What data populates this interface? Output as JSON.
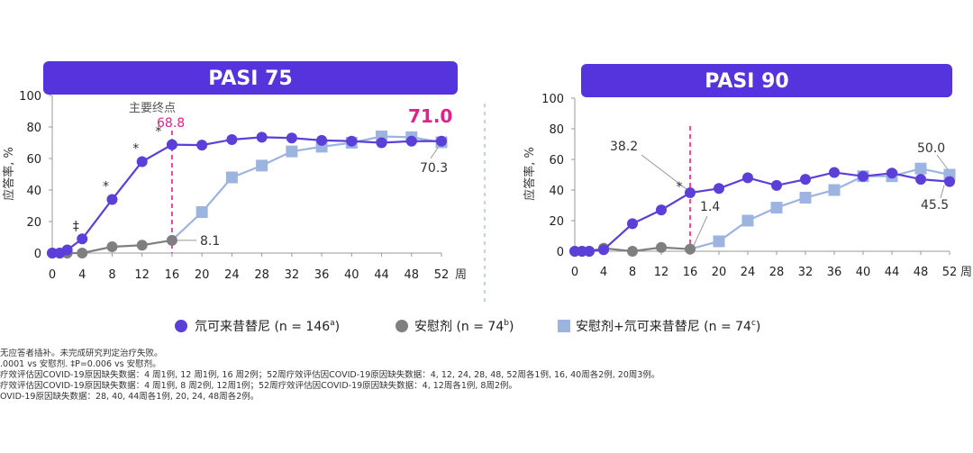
{
  "chart_data": [
    {
      "type": "line",
      "title": "PASI 75",
      "ylabel": "应答率, %",
      "xlabel": "周",
      "ylim": [
        0,
        100
      ],
      "xlim": [
        0,
        52
      ],
      "x_ticks": [
        "0",
        "4",
        "8",
        "12",
        "16",
        "20",
        "24",
        "28",
        "32",
        "36",
        "40",
        "44",
        "48",
        "52"
      ],
      "y_ticks": [
        "0",
        "20",
        "40",
        "60",
        "80",
        "100"
      ],
      "primary_endpoint": {
        "label": "主要终点",
        "week": 16,
        "value_label": "68.8"
      },
      "series": [
        {
          "name": "氘可来昔替尼",
          "x": [
            0,
            1,
            2,
            4,
            8,
            12,
            16,
            20,
            24,
            28,
            32,
            36,
            40,
            44,
            48,
            52
          ],
          "values": [
            0,
            0,
            2,
            9,
            34,
            58,
            68.8,
            68.5,
            72,
            73.5,
            73,
            71.5,
            71,
            70,
            71,
            71.0
          ]
        },
        {
          "name": "安慰剂",
          "x": [
            0,
            1,
            2,
            4,
            8,
            12,
            16
          ],
          "values": [
            0,
            0,
            0,
            0,
            4,
            5,
            8.1
          ]
        },
        {
          "name": "安慰剂+氘可来昔替尼",
          "x": [
            16,
            20,
            24,
            28,
            32,
            36,
            40,
            44,
            48,
            52
          ],
          "values": [
            8.1,
            26,
            48,
            55.5,
            64.5,
            67.5,
            70,
            74,
            73.5,
            70.3
          ]
        }
      ],
      "star_labels": [
        "‡",
        "*",
        "*",
        "*"
      ],
      "callouts": {
        "placebo_16": "8.1",
        "combo_52": "70.3",
        "final": "71.0"
      }
    },
    {
      "type": "line",
      "title": "PASI 90",
      "ylabel": "应答率, %",
      "xlabel": "周",
      "ylim": [
        0,
        100
      ],
      "xlim": [
        0,
        52
      ],
      "x_ticks": [
        "0",
        "4",
        "8",
        "12",
        "16",
        "20",
        "24",
        "28",
        "32",
        "36",
        "40",
        "44",
        "48",
        "52"
      ],
      "y_ticks": [
        "0",
        "20",
        "40",
        "60",
        "80",
        "100"
      ],
      "series": [
        {
          "name": "氘可来昔替尼",
          "x": [
            0,
            1,
            2,
            4,
            8,
            12,
            16,
            20,
            24,
            28,
            32,
            36,
            40,
            44,
            48,
            52
          ],
          "values": [
            0,
            0,
            0,
            1,
            18,
            27,
            38.2,
            41,
            48,
            43,
            47,
            51.5,
            49,
            51,
            47,
            45.5
          ]
        },
        {
          "name": "安慰剂",
          "x": [
            0,
            1,
            2,
            4,
            8,
            12,
            16
          ],
          "values": [
            0,
            0,
            0,
            2,
            0,
            2.5,
            1.4
          ]
        },
        {
          "name": "安慰剂+氘可来昔替尼",
          "x": [
            16,
            20,
            24,
            28,
            32,
            36,
            40,
            44,
            48,
            52
          ],
          "values": [
            1.4,
            6.5,
            20,
            28.5,
            35,
            40,
            49,
            49,
            54,
            50.0
          ]
        }
      ],
      "star_labels": [
        "*"
      ],
      "callouts": {
        "drug_16": "38.2",
        "placebo_16": "1.4",
        "combo_52": "50.0",
        "drug_52": "45.5"
      }
    }
  ],
  "legend": [
    {
      "label": "氘可来昔替尼  (n = 146",
      "sup": "a",
      "tail": ")"
    },
    {
      "label": "安慰剂 (n = 74",
      "sup": "b",
      "tail": ")"
    },
    {
      "label": "安慰剂+氘可来昔替尼 (n = 74",
      "sup": "c",
      "tail": ")"
    }
  ],
  "footnotes": [
    "无应答者插补。未完成研究判定治疗失败。",
    ".0001 vs 安慰剂. ‡P=0.006 vs 安慰剂。",
    "疗效评估因COVID-19原因缺失数据：4 周1例, 12 周1例, 16 周2例；52周疗效评估因COVID-19原因缺失数据：4, 12, 24, 28, 48, 52周各1例, 16, 40周各2例, 20周3例。",
    "疗效评估因COVID-19原因缺失数据：4 周1例, 8 周2例, 12周1例；52周疗效评估因COVID-19原因缺失数据：4, 12周各1例, 8周2例。",
    "OVID-19原因缺失数据：28, 40, 44周各1例, 20, 24, 48周各2例。"
  ],
  "colors": {
    "header": "#5533dd",
    "drug": "#5b3fd8",
    "placebo": "#7f7f7f",
    "combo": "#9db3e0",
    "endpoint": "#e0218a"
  }
}
